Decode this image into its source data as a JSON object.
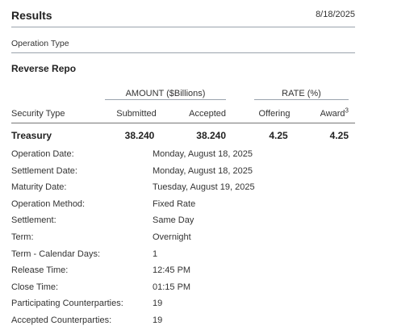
{
  "header": {
    "title": "Results",
    "date": "8/18/2025"
  },
  "operation_type_label": "Operation Type",
  "section_title": "Reverse Repo",
  "table": {
    "group_headers": [
      "AMOUNT ($Billions)",
      "RATE (%)"
    ],
    "columns": [
      "Security Type",
      "Submitted",
      "Accepted",
      "Offering",
      "Award"
    ],
    "award_footnote": "3",
    "rows": [
      [
        "Treasury",
        "38.240",
        "38.240",
        "4.25",
        "4.25"
      ]
    ]
  },
  "details": [
    {
      "label": "Operation Date:",
      "value": "Monday, August 18, 2025"
    },
    {
      "label": "Settlement Date:",
      "value": "Monday, August 18, 2025"
    },
    {
      "label": "Maturity Date:",
      "value": "Tuesday, August 19, 2025"
    },
    {
      "label": "Operation Method:",
      "value": "Fixed Rate"
    },
    {
      "label": "Settlement:",
      "value": "Same Day"
    },
    {
      "label": "Term:",
      "value": "Overnight"
    },
    {
      "label": "Term - Calendar Days:",
      "value": "1"
    },
    {
      "label": "Release Time:",
      "value": "12:45 PM"
    },
    {
      "label": "Close Time:",
      "value": "01:15 PM"
    },
    {
      "label": "Participating Counterparties:",
      "value": "19"
    },
    {
      "label": "Accepted Counterparties:",
      "value": "19"
    }
  ]
}
